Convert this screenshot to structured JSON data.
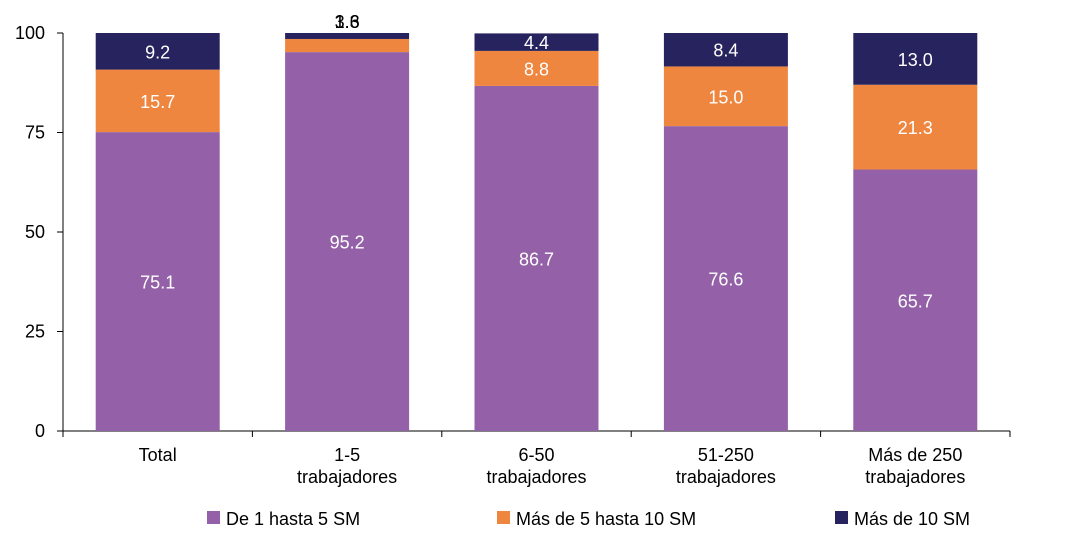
{
  "chart_data": {
    "type": "bar",
    "stacked": true,
    "categories": [
      [
        "Total"
      ],
      [
        "1-5",
        "trabajadores"
      ],
      [
        "6-50",
        "trabajadores"
      ],
      [
        "51-250",
        "trabajadores"
      ],
      [
        "Más de 250",
        "trabajadores"
      ]
    ],
    "series": [
      {
        "name": "De 1 hasta 5 SM",
        "color": "#9461A8",
        "label_color": "#ffffff",
        "values": [
          75.1,
          95.2,
          86.7,
          76.6,
          65.7
        ]
      },
      {
        "name": "Más de 5 hasta 10 SM",
        "color": "#EF8640",
        "label_color": "#ffffff",
        "values": [
          15.7,
          3.3,
          8.8,
          15.0,
          21.3
        ]
      },
      {
        "name": "Más de 10 SM",
        "color": "#27235E",
        "label_color": "#ffffff",
        "values": [
          9.2,
          1.6,
          4.4,
          8.4,
          13.0
        ]
      }
    ],
    "ylim": [
      0,
      100
    ],
    "yticks": [
      0,
      25,
      50,
      75,
      100
    ],
    "xlabel": "",
    "ylabel": "",
    "legend_position": "bottom",
    "grid": false
  }
}
